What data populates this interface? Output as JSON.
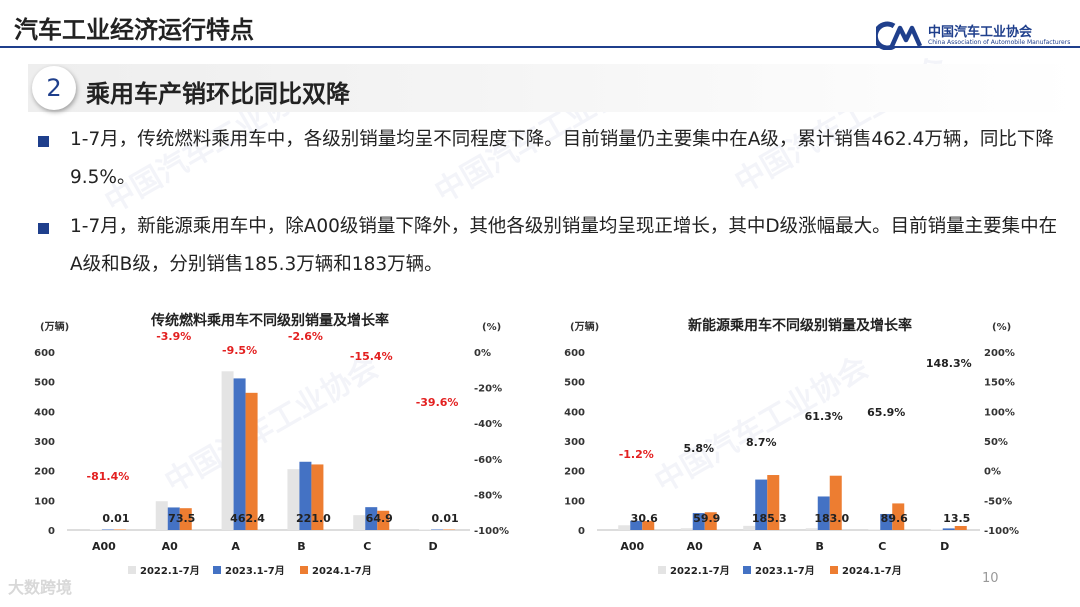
{
  "header": {
    "title": "汽车工业经济运行特点",
    "logo_cn": "中国汽车工业协会",
    "logo_en": "China Association of Automobile Manufacturers"
  },
  "section": {
    "number": "2",
    "title": "乘用车产销环比同比双降"
  },
  "bullets": [
    "1-7月，传统燃料乘用车中，各级别销量均呈不同程度下降。目前销量仍主要集中在A级，累计销售462.4万辆，同比下降9.5%。",
    "1-7月，新能源乘用车中，除A00级销量下降外，其他各级别销量均呈现正增长，其中D级涨幅最大。目前销量主要集中在A级和B级，分别销售185.3万辆和183万辆。"
  ],
  "footer": {
    "page": "10",
    "watermark": "大数跨境"
  },
  "colors": {
    "s2022": "#e4e4e4",
    "s2023": "#4472c4",
    "s2024": "#ed7d31",
    "growth": "#e32020",
    "accent": "#1f3f8c"
  },
  "chart_data": [
    {
      "type": "bar",
      "title": "传统燃料乘用车不同级别销量及增长率",
      "ylabel": "(万辆)",
      "y2label": "(%)",
      "categories": [
        "A00",
        "A0",
        "A",
        "B",
        "C",
        "D"
      ],
      "ylim": [
        0,
        600
      ],
      "yticks": [
        0,
        100,
        200,
        300,
        400,
        500,
        600
      ],
      "y2lim": [
        -100,
        0
      ],
      "y2ticks": [
        "-100%",
        "-80%",
        "-60%",
        "-40%",
        "-20%",
        "0%"
      ],
      "series": [
        {
          "name": "2022.1-7月",
          "values": [
            0.02,
            97,
            535,
            205,
            50,
            0.01
          ]
        },
        {
          "name": "2023.1-7月",
          "values": [
            0.05,
            76,
            511,
            230,
            77,
            0.02
          ]
        },
        {
          "name": "2024.1-7月",
          "values": [
            0.01,
            73.5,
            462.4,
            221.0,
            64.9,
            0.01
          ]
        }
      ],
      "value_labels": [
        "0.01",
        "73.5",
        "462.4",
        "221.0",
        "64.9",
        "0.01"
      ],
      "growth_labels": [
        "-81.4%",
        "-3.9%",
        "-9.5%",
        "-2.6%",
        "-15.4%",
        "-39.6%"
      ],
      "growth_values": [
        -81.4,
        -3.9,
        -9.5,
        -2.6,
        -15.4,
        -39.6
      ],
      "growth_color": "#e32020",
      "legend": [
        "2022.1-7月",
        "2023.1-7月",
        "2024.1-7月"
      ]
    },
    {
      "type": "bar",
      "title": "新能源乘用车不同级别销量及增长率",
      "ylabel": "(万辆)",
      "y2label": "(%)",
      "categories": [
        "A00",
        "A0",
        "A",
        "B",
        "C",
        "D"
      ],
      "ylim": [
        0,
        600
      ],
      "yticks": [
        0,
        100,
        200,
        300,
        400,
        500,
        600
      ],
      "y2lim": [
        -100,
        200
      ],
      "y2ticks": [
        "-100%",
        "-50%",
        "0%",
        "50%",
        "100%",
        "150%",
        "200%"
      ],
      "series": [
        {
          "name": "2022.1-7月",
          "values": [
            16,
            6,
            14,
            6,
            2,
            1
          ]
        },
        {
          "name": "2023.1-7月",
          "values": [
            31,
            57,
            170,
            113,
            54,
            5.4
          ]
        },
        {
          "name": "2024.1-7月",
          "values": [
            30.6,
            59.9,
            185.3,
            183.0,
            89.6,
            13.5
          ]
        }
      ],
      "value_labels": [
        "30.6",
        "59.9",
        "185.3",
        "183.0",
        "89.6",
        "13.5"
      ],
      "growth_labels": [
        "-1.2%",
        "5.8%",
        "8.7%",
        "61.3%",
        "65.9%",
        "148.3%"
      ],
      "growth_values": [
        -1.2,
        5.8,
        8.7,
        61.3,
        65.9,
        148.3
      ],
      "growth_colors": [
        "#e32020",
        "#222222",
        "#222222",
        "#222222",
        "#222222",
        "#222222"
      ],
      "legend": [
        "2022.1-7月",
        "2023.1-7月",
        "2024.1-7月"
      ]
    }
  ]
}
